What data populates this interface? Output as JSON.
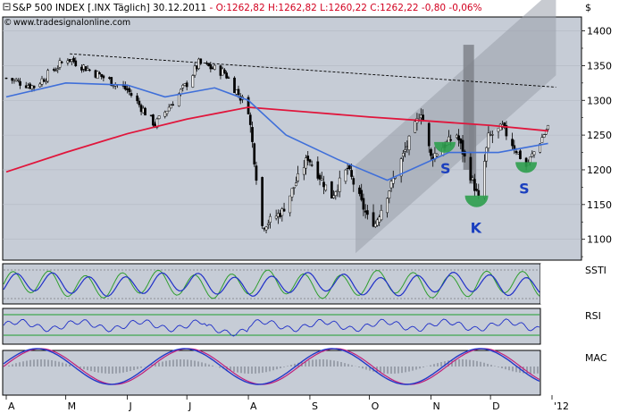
{
  "header": {
    "symbol": "S&P 500 INDEX [.INX  Täglich] 30.12.2011",
    "quote": " - O:1262,82 H:1262,82 L:1260,22 C:1262,22 -0,80 -0,06%",
    "website": "www.tradesignalonline.com",
    "currency": "$"
  },
  "indicators": {
    "ssti": "SSTI",
    "rsi": "RSI",
    "macd": "MAC"
  },
  "patterns": {
    "left_shoulder": "S",
    "head": "K",
    "right_shoulder": "S"
  },
  "colors": {
    "background": "#C6CCD6",
    "candle": "#000000",
    "long_ma": "#E0163C",
    "short_ma": "#3F6FD9",
    "trendline": "#000000",
    "channel": "#9AA0AB",
    "pattern": "#2E9E4E",
    "pattern_text": "#1A3FBF",
    "volume_bar": "#7F838B"
  },
  "chart_data": {
    "type": "line",
    "title": "S&P 500 INDEX [.INX  Täglich] 30.12.2011",
    "ylabel": "$",
    "ylim": [
      1070,
      1420
    ],
    "y_ticks": [
      1100,
      1150,
      1200,
      1250,
      1300,
      1350,
      1400
    ],
    "x_ticks": [
      "A",
      "M",
      "J",
      "J",
      "A",
      "S",
      "O",
      "N",
      "D",
      "'12"
    ],
    "months": [
      "2011-04",
      "2011-05",
      "2011-06",
      "2011-07",
      "2011-08",
      "2011-09",
      "2011-10",
      "2011-11",
      "2011-12",
      "2012-01"
    ],
    "close_keypoints": [
      [
        "2011-04-01",
        1332
      ],
      [
        "2011-04-15",
        1320
      ],
      [
        "2011-05-02",
        1361
      ],
      [
        "2011-05-20",
        1333
      ],
      [
        "2011-06-01",
        1315
      ],
      [
        "2011-06-15",
        1265
      ],
      [
        "2011-06-30",
        1320
      ],
      [
        "2011-07-07",
        1353
      ],
      [
        "2011-07-20",
        1340
      ],
      [
        "2011-08-01",
        1287
      ],
      [
        "2011-08-08",
        1119
      ],
      [
        "2011-08-18",
        1140
      ],
      [
        "2011-08-31",
        1218
      ],
      [
        "2011-09-12",
        1162
      ],
      [
        "2011-09-20",
        1202
      ],
      [
        "2011-09-30",
        1131
      ],
      [
        "2011-10-04",
        1123
      ],
      [
        "2011-10-27",
        1284
      ],
      [
        "2011-11-01",
        1218
      ],
      [
        "2011-11-14",
        1251
      ],
      [
        "2011-11-25",
        1158
      ],
      [
        "2011-11-30",
        1247
      ],
      [
        "2011-12-07",
        1261
      ],
      [
        "2011-12-19",
        1205
      ],
      [
        "2011-12-30",
        1262
      ]
    ],
    "series": [
      {
        "values": [
          [
            "2011-04-01",
            1305
          ],
          [
            "2011-05-01",
            1325
          ],
          [
            "2011-06-01",
            1322
          ],
          [
            "2011-06-20",
            1305
          ],
          [
            "2011-07-15",
            1318
          ],
          [
            "2011-08-01",
            1300
          ],
          [
            "2011-08-20",
            1250
          ],
          [
            "2011-09-15",
            1215
          ],
          [
            "2011-10-10",
            1185
          ],
          [
            "2011-11-10",
            1225
          ],
          [
            "2011-12-05",
            1225
          ],
          [
            "2011-12-30",
            1238
          ]
        ]
      },
      {
        "values": [
          [
            "2011-04-01",
            1197
          ],
          [
            "2011-05-01",
            1225
          ],
          [
            "2011-06-01",
            1252
          ],
          [
            "2011-07-01",
            1273
          ],
          [
            "2011-08-01",
            1290
          ],
          [
            "2011-09-01",
            1283
          ],
          [
            "2011-10-01",
            1276
          ],
          [
            "2011-11-01",
            1270
          ],
          [
            "2011-12-01",
            1264
          ],
          [
            "2011-12-30",
            1256
          ]
        ]
      }
    ],
    "trendline": [
      [
        "2011-05-03",
        1367
      ],
      [
        "2012-01-03",
        1319
      ]
    ],
    "channel": {
      "upper": [
        [
          "2011-09-24",
          1207
        ],
        [
          "2012-01-03",
          1463
        ]
      ],
      "lower": [
        [
          "2011-09-24",
          1080
        ],
        [
          "2012-01-03",
          1336
        ]
      ]
    },
    "volume_bars": [
      {
        "date": "2011-11-20",
        "high": 1380,
        "low": 1200
      },
      {
        "date": "2011-11-22",
        "high": 1265,
        "low": 1180
      }
    ]
  }
}
